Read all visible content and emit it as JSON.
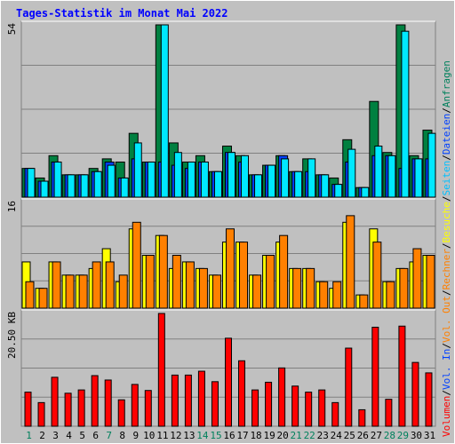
{
  "title": "Tages-Statistik im Monat Mai 2022",
  "right_legend": [
    {
      "text": "Anfragen",
      "color": "#00805c"
    },
    {
      "text": "Dateien",
      "color": "#0040ff"
    },
    {
      "text": "Seiten",
      "color": "#00c0ff"
    },
    {
      "text": "Besuche",
      "color": "#ffff00"
    },
    {
      "text": "Rechner",
      "color": "#ff8000"
    },
    {
      "text": "Vol. Out",
      "color": "#ff8000"
    },
    {
      "text": "Vol. In",
      "color": "#0040ff"
    },
    {
      "text": "Volumen",
      "color": "#ff0000"
    }
  ],
  "legend_separator": "/",
  "colors": {
    "background": "#c0c0c0",
    "title": "#0000ff",
    "anfragen": "#008040",
    "dateien": "#0040ff",
    "seiten": "#00e8ff",
    "besuche": "#ffff00",
    "rechner": "#ff8000",
    "volumen": "#ff0000",
    "weekday_label": "#000000",
    "weekend_label": "#00805c"
  },
  "chart_data": [
    {
      "type": "bar",
      "panel": "hits",
      "y_label": "54",
      "ylim": [
        0,
        54
      ],
      "x": [
        1,
        2,
        3,
        4,
        5,
        6,
        7,
        8,
        9,
        10,
        11,
        12,
        13,
        14,
        15,
        16,
        17,
        18,
        19,
        20,
        21,
        22,
        23,
        24,
        25,
        26,
        27,
        28,
        29,
        30,
        31
      ],
      "series": [
        {
          "name": "Anfragen",
          "values": [
            9,
            6,
            13,
            7,
            7,
            9,
            12,
            11,
            20,
            11,
            54,
            17,
            11,
            13,
            8,
            16,
            13,
            7,
            10,
            13,
            8,
            12,
            7,
            6,
            18,
            3,
            30,
            14,
            54,
            13,
            21
          ]
        },
        {
          "name": "Dateien",
          "values": [
            9,
            5,
            11,
            7,
            7,
            8,
            11,
            6,
            12,
            11,
            11,
            10,
            9,
            11,
            8,
            14,
            11,
            7,
            10,
            13,
            8,
            8,
            7,
            4,
            11,
            3,
            13,
            13,
            9,
            12,
            12
          ]
        },
        {
          "name": "Seiten",
          "values": [
            9,
            5,
            11,
            7,
            7,
            8,
            10,
            6,
            17,
            11,
            54,
            14,
            11,
            11,
            8,
            14,
            13,
            7,
            10,
            12,
            8,
            12,
            7,
            4,
            15,
            3,
            16,
            13,
            52,
            12,
            20
          ]
        }
      ]
    },
    {
      "type": "bar",
      "panel": "visits",
      "y_label": "16",
      "ylim": [
        0,
        16
      ],
      "x": [
        1,
        2,
        3,
        4,
        5,
        6,
        7,
        8,
        9,
        10,
        11,
        12,
        13,
        14,
        15,
        16,
        17,
        18,
        19,
        20,
        21,
        22,
        23,
        24,
        25,
        26,
        27,
        28,
        29,
        30,
        31
      ],
      "series": [
        {
          "name": "Besuche",
          "values": [
            7,
            3,
            7,
            5,
            5,
            6,
            9,
            4,
            12,
            8,
            11,
            6,
            7,
            6,
            5,
            10,
            10,
            5,
            8,
            10,
            6,
            6,
            4,
            3,
            13,
            2,
            12,
            4,
            6,
            7,
            8
          ]
        },
        {
          "name": "Rechner",
          "values": [
            4,
            3,
            7,
            5,
            5,
            7,
            7,
            5,
            13,
            8,
            11,
            8,
            7,
            6,
            5,
            12,
            10,
            5,
            8,
            11,
            6,
            6,
            4,
            4,
            14,
            2,
            10,
            4,
            6,
            9,
            8
          ]
        }
      ]
    },
    {
      "type": "bar",
      "panel": "volume",
      "y_label": "20.50 KB",
      "ylim": [
        0,
        20.5
      ],
      "x": [
        1,
        2,
        3,
        4,
        5,
        6,
        7,
        8,
        9,
        10,
        11,
        12,
        13,
        14,
        15,
        16,
        17,
        18,
        19,
        20,
        21,
        22,
        23,
        24,
        25,
        26,
        27,
        28,
        29,
        30,
        31
      ],
      "series": [
        {
          "name": "Volumen",
          "values": [
            6.2,
            4.3,
            8.9,
            6.0,
            6.6,
            9.2,
            8.4,
            4.8,
            7.6,
            6.5,
            20.5,
            9.3,
            9.3,
            10.0,
            8.1,
            16.0,
            11.9,
            6.6,
            8.0,
            10.6,
            7.3,
            6.2,
            6.6,
            4.3,
            14.2,
            3.0,
            18.0,
            4.9,
            18.2,
            11.6,
            9.7
          ]
        }
      ]
    }
  ],
  "day_labels": [
    "1",
    "2",
    "3",
    "4",
    "5",
    "6",
    "7",
    "8",
    "9",
    "10",
    "11",
    "12",
    "13",
    "14",
    "15",
    "16",
    "17",
    "18",
    "19",
    "20",
    "21",
    "22",
    "23",
    "24",
    "25",
    "26",
    "27",
    "28",
    "29",
    "30",
    "31"
  ],
  "weekend_days": [
    1,
    7,
    14,
    15,
    21,
    22,
    28,
    29
  ]
}
